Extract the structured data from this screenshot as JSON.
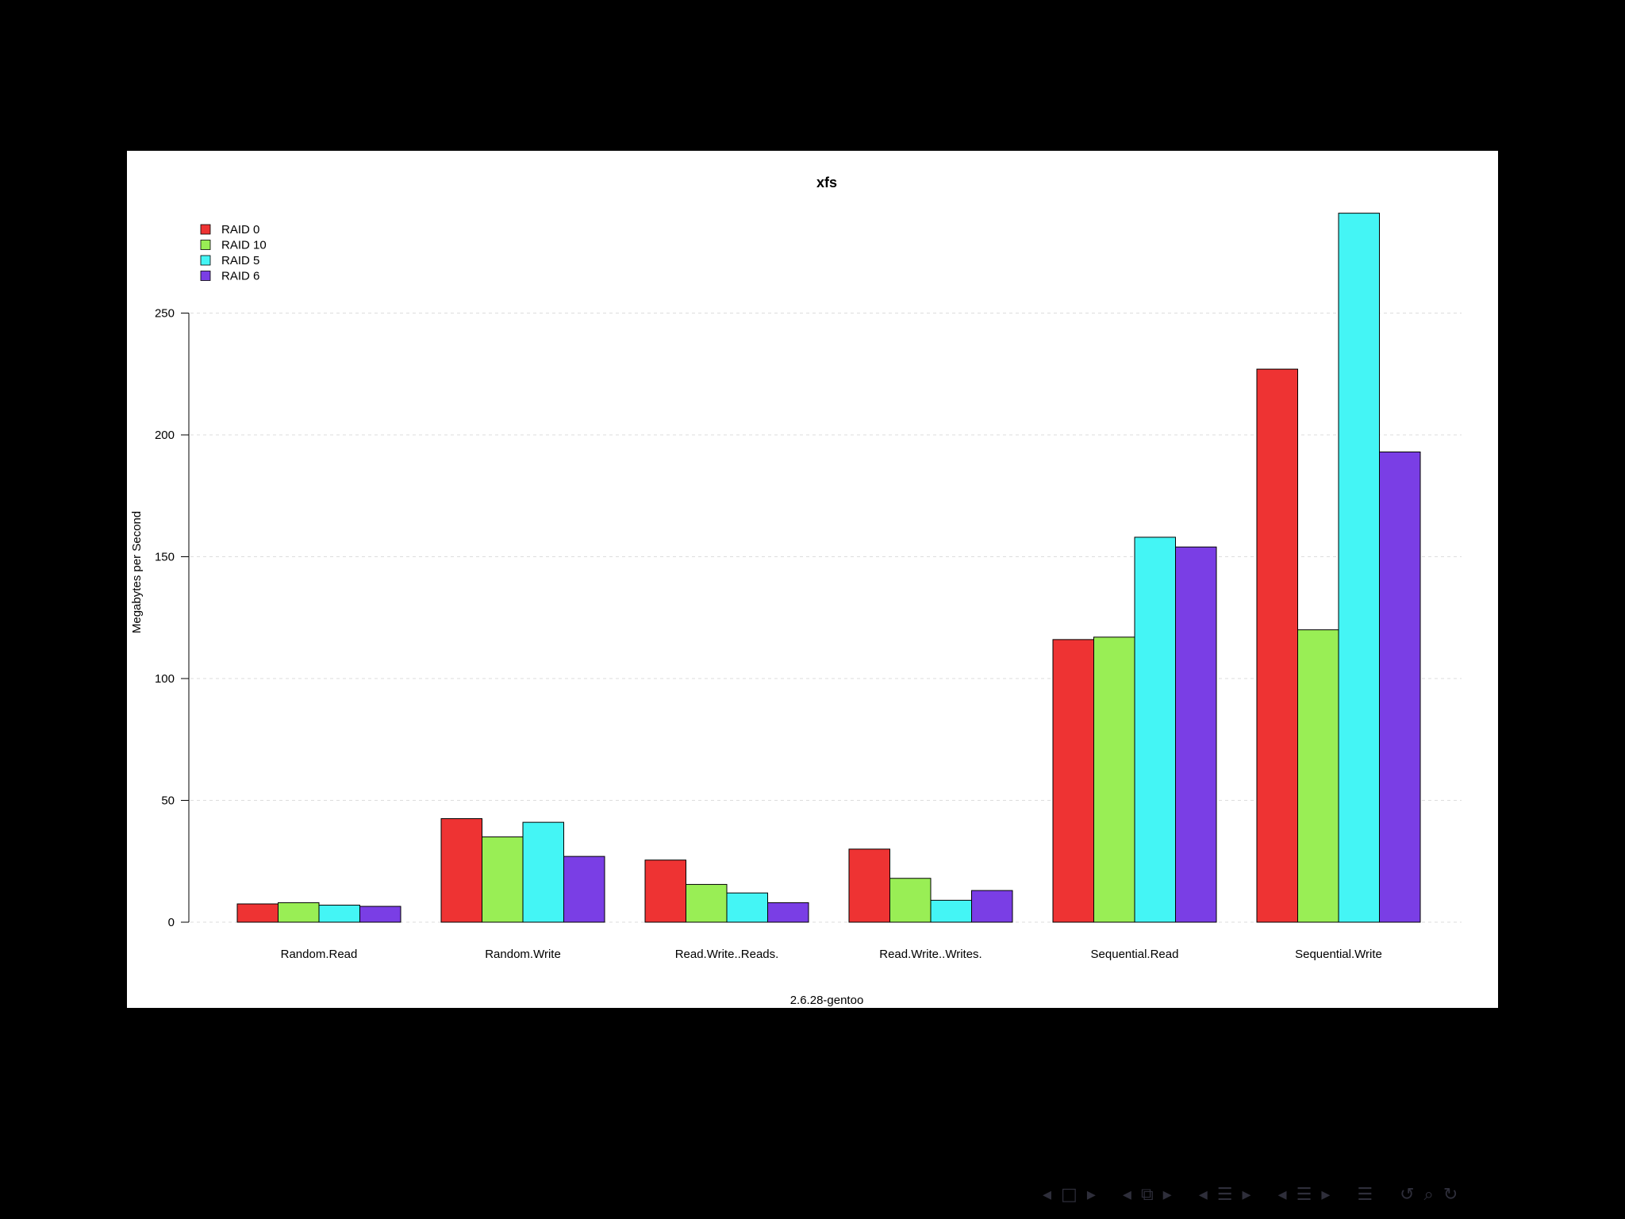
{
  "chart_data": {
    "type": "bar",
    "title": "xfs",
    "xlabel": "2.6.28-gentoo",
    "ylabel": "Megabytes per Second",
    "categories": [
      "Random.Read",
      "Random.Write",
      "Read.Write..Reads.",
      "Read.Write..Writes.",
      "Sequential.Read",
      "Sequential.Write"
    ],
    "series": [
      {
        "name": "RAID 0",
        "color": "#ee3333",
        "values": [
          7.5,
          42.5,
          25.5,
          30,
          116,
          227
        ]
      },
      {
        "name": "RAID 10",
        "color": "#99ee55",
        "values": [
          8,
          35,
          15.5,
          18,
          117,
          120
        ]
      },
      {
        "name": "RAID 5",
        "color": "#44f5f5",
        "values": [
          7,
          41,
          12,
          9,
          158,
          291
        ]
      },
      {
        "name": "RAID 6",
        "color": "#7a3ee5",
        "values": [
          6.5,
          27,
          8,
          13,
          154,
          193
        ]
      }
    ],
    "yticks": [
      0,
      50,
      100,
      150,
      200,
      250
    ],
    "ylim": [
      0,
      291
    ],
    "grid": true,
    "legend_position": "top-left"
  },
  "navigation": {
    "icons": [
      "arrow-left-icon",
      "frame-icon",
      "arrow-right-icon",
      "subsection-icon",
      "section-icon",
      "menu-icon",
      "search-icon",
      "back-icon"
    ],
    "prev_frame": "◂",
    "frame_symbol": "□",
    "next_frame": "▸",
    "prev_sub": "◂",
    "sub_symbol": "⧉",
    "next_sub": "▸",
    "prev_sec": "◂",
    "sec_symbol": "☰",
    "next_sec": "▸",
    "prev_pres": "◂",
    "pres_symbol": "☰",
    "next_pres": "▸",
    "toc_symbol": "☰",
    "back_symbol": "↺",
    "search_symbol": "⌕",
    "forward_symbol": "↻"
  }
}
